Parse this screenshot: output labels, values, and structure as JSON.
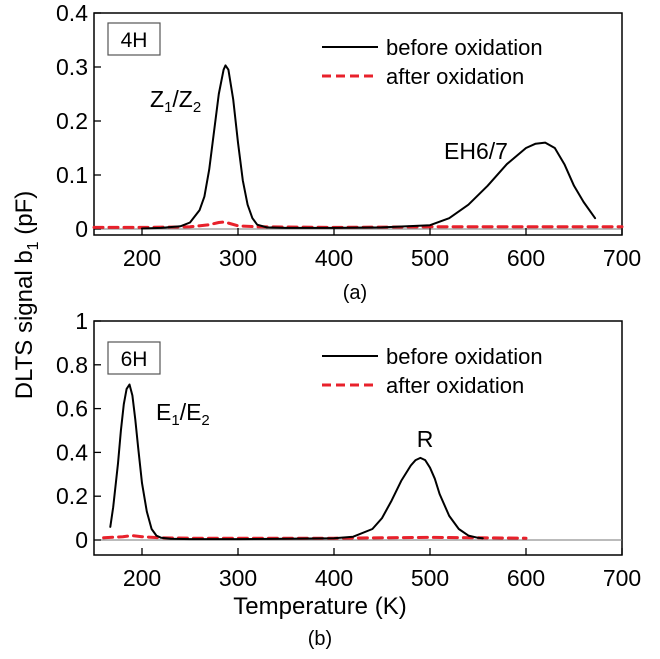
{
  "figure": {
    "ylabel": "DLTS signal b",
    "ylabel_sub": "1",
    "ylabel_unit": " (pF)",
    "xlabel": "Temperature (K)"
  },
  "chart_data": [
    {
      "type": "line",
      "panel_label": "(a)",
      "polytype": "4H",
      "polytype_color": "#e8212b",
      "xlim": [
        150,
        700
      ],
      "ylim": [
        0,
        0.4
      ],
      "xticks": [
        200,
        300,
        400,
        500,
        600,
        700
      ],
      "yticks": [
        0,
        0.1,
        0.2,
        0.3,
        0.4
      ],
      "ytick_labels": [
        "0",
        "0.1",
        "0.2",
        "0.3",
        "0.4"
      ],
      "legend_position": "top-right",
      "peaks": [
        {
          "main": "Z",
          "sub1": "1",
          "sep": "/Z",
          "sub2": "2",
          "x": 275,
          "y": 0.33
        },
        {
          "main": "EH6/7",
          "x": 540,
          "y": 0.155
        }
      ],
      "series": [
        {
          "name": "before oxidation",
          "color": "#000000",
          "dash": "solid",
          "x": [
            200,
            220,
            240,
            250,
            260,
            265,
            270,
            275,
            280,
            285,
            287,
            290,
            295,
            300,
            305,
            310,
            315,
            320,
            330,
            350,
            400,
            450,
            500,
            520,
            540,
            560,
            580,
            600,
            610,
            620,
            630,
            640,
            650,
            660,
            672
          ],
          "y": [
            0.001,
            0.002,
            0.005,
            0.012,
            0.035,
            0.06,
            0.11,
            0.18,
            0.25,
            0.295,
            0.303,
            0.295,
            0.24,
            0.16,
            0.09,
            0.045,
            0.02,
            0.008,
            0.003,
            0.002,
            0.002,
            0.003,
            0.007,
            0.02,
            0.045,
            0.08,
            0.12,
            0.15,
            0.158,
            0.16,
            0.15,
            0.12,
            0.08,
            0.05,
            0.02
          ]
        },
        {
          "name": "after oxidation",
          "color": "#e8212b",
          "dash": "dashed",
          "x": [
            150,
            200,
            250,
            270,
            280,
            285,
            290,
            300,
            320,
            400,
            500,
            600,
            700
          ],
          "y": [
            0.003,
            0.003,
            0.004,
            0.008,
            0.012,
            0.013,
            0.011,
            0.006,
            0.004,
            0.003,
            0.004,
            0.004,
            0.004
          ]
        }
      ]
    },
    {
      "type": "line",
      "panel_label": "(b)",
      "polytype": "6H",
      "polytype_color": "#2a3ee0",
      "xlim": [
        150,
        700
      ],
      "ylim": [
        0,
        1
      ],
      "xticks": [
        200,
        300,
        400,
        500,
        600,
        700
      ],
      "yticks": [
        0,
        0.2,
        0.4,
        0.6,
        0.8,
        1
      ],
      "ytick_labels": [
        "0",
        "0.2",
        "0.4",
        "0.6",
        "0.8",
        "1"
      ],
      "legend_position": "top-right",
      "peaks": [
        {
          "main": "E",
          "sub1": "1",
          "sep": "/E",
          "sub2": "2",
          "x": 198,
          "y": 0.66
        },
        {
          "main": "R",
          "x": 487,
          "y": 0.44
        }
      ],
      "series": [
        {
          "name": "before oxidation",
          "color": "#000000",
          "dash": "solid",
          "x": [
            167,
            170,
            175,
            178,
            181,
            184,
            187,
            190,
            193,
            196,
            200,
            205,
            210,
            215,
            220,
            230,
            250,
            300,
            350,
            400,
            420,
            440,
            450,
            460,
            470,
            480,
            485,
            490,
            495,
            500,
            505,
            510,
            520,
            530,
            540,
            550,
            555
          ],
          "y": [
            0.06,
            0.15,
            0.35,
            0.5,
            0.62,
            0.69,
            0.71,
            0.66,
            0.55,
            0.42,
            0.26,
            0.13,
            0.05,
            0.02,
            0.01,
            0.006,
            0.004,
            0.004,
            0.006,
            0.008,
            0.015,
            0.05,
            0.1,
            0.18,
            0.27,
            0.34,
            0.365,
            0.375,
            0.365,
            0.33,
            0.28,
            0.21,
            0.11,
            0.05,
            0.02,
            0.01,
            0.008
          ]
        },
        {
          "name": "after oxidation",
          "color": "#e8212b",
          "dash": "dashed",
          "x": [
            160,
            180,
            190,
            200,
            220,
            250,
            300,
            350,
            400,
            450,
            500,
            550,
            600
          ],
          "y": [
            0.01,
            0.015,
            0.02,
            0.015,
            0.01,
            0.008,
            0.008,
            0.008,
            0.008,
            0.01,
            0.012,
            0.01,
            0.008
          ]
        }
      ]
    }
  ]
}
